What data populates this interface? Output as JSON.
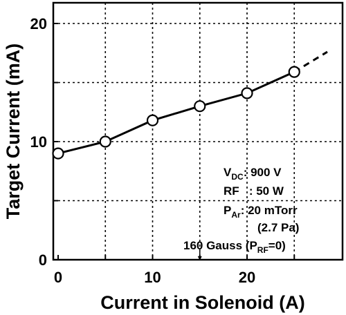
{
  "chart_data": {
    "type": "line",
    "xlabel": "Current in Solenoid (A)",
    "ylabel": "Target Current (mA)",
    "xlim": [
      0,
      29.5
    ],
    "ylim": [
      0,
      21
    ],
    "x_ticks": [
      {
        "value": 0,
        "label": "0"
      },
      {
        "value": 10,
        "label": "10"
      },
      {
        "value": 20,
        "label": "20"
      }
    ],
    "y_ticks": [
      {
        "value": 0,
        "label": "0"
      },
      {
        "value": 10,
        "label": "10"
      },
      {
        "value": 20,
        "label": "20"
      }
    ],
    "grid": true,
    "series": [
      {
        "x": [
          0,
          5,
          10,
          15,
          20,
          25
        ],
        "y": [
          9.0,
          10.0,
          11.8,
          13.0,
          14.1,
          15.9
        ],
        "marker": "open-circle",
        "extension": {
          "x": [
            25,
            28.5
          ],
          "y": [
            15.9,
            17.6
          ],
          "style": "dashed"
        }
      }
    ],
    "annotations": {
      "vdc": {
        "main": "V",
        "sub": "DC",
        "rest": ": 900 V"
      },
      "rf": {
        "text": "RF   : 50 W"
      },
      "par": {
        "main": "P",
        "sub": "Ar",
        "rest": ": 20 mTorr"
      },
      "pa": {
        "text": "(2.7 Pa)"
      },
      "gauss": {
        "pre": "160 Gauss (P",
        "sub": "RF",
        "post": "=0)"
      },
      "arrow_x": 15
    }
  }
}
